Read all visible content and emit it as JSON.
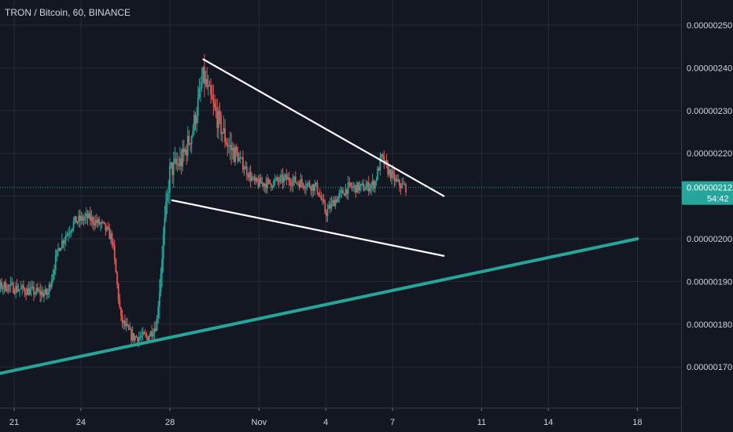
{
  "header": {
    "title": "TRON / Bitcoin, 60, BINANCE"
  },
  "colors": {
    "background": "#131722",
    "grid": "#262b36",
    "up": "#26a69a",
    "down": "#ef5350",
    "trendline_green": "#26a69a",
    "trendline_white": "#ffffff",
    "price_line": "#26a69a"
  },
  "price_badge": {
    "price": "0.00000212",
    "countdown": "54:42"
  },
  "chart_data": {
    "type": "candlestick",
    "symbol": "TRON / Bitcoin",
    "interval": "60",
    "exchange": "BINANCE",
    "y_axis": {
      "range": [
        1.6e-06,
        2.54e-06
      ],
      "tick_labels": [
        "0.00000250",
        "0.00000240",
        "0.00000230",
        "0.00000220",
        "0.00000210",
        "0.00000200",
        "0.00000190",
        "0.00000180",
        "0.00000170"
      ],
      "tick_values": [
        2.5e-06,
        2.4e-06,
        2.3e-06,
        2.2e-06,
        2.1e-06,
        2e-06,
        1.9e-06,
        1.8e-06,
        1.7e-06
      ]
    },
    "x_axis": {
      "tick_labels": [
        "21",
        "24",
        "28",
        "Nov",
        "4",
        "7",
        "11",
        "14",
        "18"
      ]
    },
    "last_price": 2.12e-06,
    "grid": true,
    "trendlines": [
      {
        "name": "upper-resistance",
        "color": "white",
        "from": {
          "day": 29.5,
          "price": 2.42e-06
        },
        "to": {
          "day": 40.3,
          "price": 2.1e-06
        }
      },
      {
        "name": "lower-support",
        "color": "white",
        "from": {
          "day": 28.1,
          "price": 2.09e-06
        },
        "to": {
          "day": 40.3,
          "price": 1.96e-06
        }
      },
      {
        "name": "long-term-support",
        "color": "green",
        "from": {
          "day": 19.0,
          "price": 1.67e-06
        },
        "to": {
          "day": 49.0,
          "price": 2e-06
        }
      }
    ],
    "price_path": [
      {
        "day": 19.0,
        "price": 1.92e-06
      },
      {
        "day": 19.6,
        "price": 1.87e-06
      },
      {
        "day": 20.5,
        "price": 1.89e-06
      },
      {
        "day": 21.5,
        "price": 1.88e-06
      },
      {
        "day": 22.5,
        "price": 1.87e-06
      },
      {
        "day": 23.0,
        "price": 1.98e-06
      },
      {
        "day": 23.7,
        "price": 2.04e-06
      },
      {
        "day": 24.3,
        "price": 2.05e-06
      },
      {
        "day": 25.0,
        "price": 2.03e-06
      },
      {
        "day": 25.4,
        "price": 2e-06
      },
      {
        "day": 25.8,
        "price": 1.81e-06
      },
      {
        "day": 26.3,
        "price": 1.77e-06
      },
      {
        "day": 27.0,
        "price": 1.77e-06
      },
      {
        "day": 27.4,
        "price": 1.8e-06
      },
      {
        "day": 27.7,
        "price": 2e-06
      },
      {
        "day": 28.0,
        "price": 2.16e-06
      },
      {
        "day": 28.5,
        "price": 2.18e-06
      },
      {
        "day": 29.0,
        "price": 2.25e-06
      },
      {
        "day": 29.5,
        "price": 2.38e-06
      },
      {
        "day": 30.0,
        "price": 2.3e-06
      },
      {
        "day": 30.6,
        "price": 2.22e-06
      },
      {
        "day": 31.2,
        "price": 2.18e-06
      },
      {
        "day": 31.8,
        "price": 2.13e-06
      },
      {
        "day": 32.5,
        "price": 2.13e-06
      },
      {
        "day": 33.2,
        "price": 2.14e-06
      },
      {
        "day": 34.0,
        "price": 2.13e-06
      },
      {
        "day": 34.6,
        "price": 2.12e-06
      },
      {
        "day": 35.0,
        "price": 2.06e-06
      },
      {
        "day": 35.4,
        "price": 2.09e-06
      },
      {
        "day": 36.0,
        "price": 2.12e-06
      },
      {
        "day": 36.8,
        "price": 2.12e-06
      },
      {
        "day": 37.2,
        "price": 2.13e-06
      },
      {
        "day": 37.5,
        "price": 2.19e-06
      },
      {
        "day": 37.8,
        "price": 2.16e-06
      },
      {
        "day": 38.2,
        "price": 2.13e-06
      },
      {
        "day": 38.6,
        "price": 2.12e-06
      }
    ]
  }
}
